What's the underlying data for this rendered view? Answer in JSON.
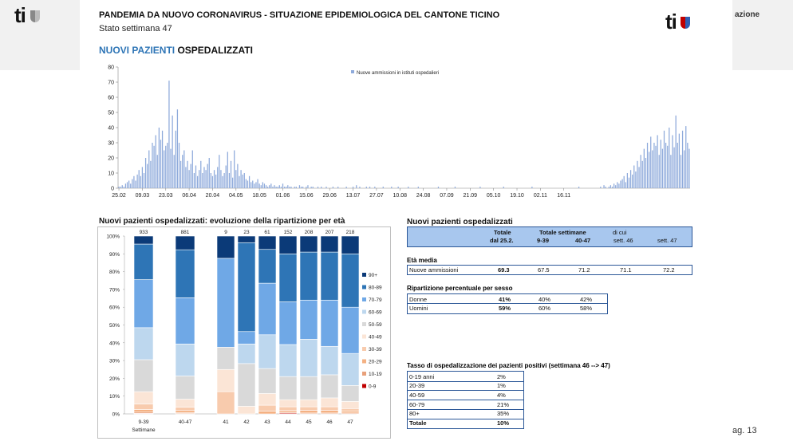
{
  "header": {
    "title": "PANDEMIA DA NUOVO CORONAVIRUS - SITUAZIONE EPIDEMIOLOGICA DEL CANTONE TICINO",
    "subtitle": "Stato settimana 47",
    "logo_text": "ti",
    "right_edge_text": "azione",
    "page_number": "ag. 13"
  },
  "section_title": {
    "part1": "NUOVI PAZIENTI",
    "part2": " OSPEDALIZZATI"
  },
  "chart_data": [
    {
      "type": "bar",
      "legend": "Nuove ammissioni in istituti ospedalieri",
      "legend_position": "top-center",
      "ylim": [
        0,
        80
      ],
      "yticks": [
        0,
        10,
        20,
        30,
        40,
        50,
        60,
        70,
        80
      ],
      "xtick_labels": [
        "25.02",
        "09.03",
        "23.03",
        "06.04",
        "20.04",
        "04.05",
        "18.05",
        "01.06",
        "15.06",
        "29.06",
        "13.07",
        "27.07",
        "10.08",
        "24.08",
        "07.09",
        "21.09",
        "05.10",
        "19.10",
        "02.11",
        "16.11"
      ],
      "start_date": "25.02",
      "color": "#8eaadb",
      "values": [
        1,
        1,
        2,
        1,
        3,
        4,
        5,
        3,
        6,
        8,
        5,
        9,
        12,
        8,
        14,
        10,
        20,
        16,
        25,
        18,
        30,
        28,
        35,
        22,
        40,
        32,
        38,
        25,
        28,
        30,
        71,
        26,
        48,
        22,
        38,
        52,
        30,
        18,
        22,
        25,
        14,
        18,
        12,
        16,
        25,
        10,
        15,
        8,
        12,
        18,
        10,
        14,
        12,
        16,
        20,
        10,
        8,
        12,
        9,
        14,
        22,
        12,
        8,
        10,
        15,
        24,
        10,
        18,
        7,
        25,
        12,
        16,
        8,
        12,
        9,
        10,
        6,
        5,
        8,
        4,
        5,
        3,
        4,
        6,
        3,
        2,
        4,
        3,
        2,
        1,
        2,
        3,
        1,
        2,
        1,
        1,
        2,
        1,
        3,
        1,
        1,
        2,
        1,
        1,
        0,
        1,
        1,
        0,
        2,
        1,
        1,
        0,
        1,
        2,
        0,
        1,
        1,
        0,
        0,
        1,
        0,
        1,
        0,
        0,
        1,
        0,
        0,
        0,
        1,
        0,
        0,
        1,
        0,
        0,
        0,
        0,
        1,
        0,
        0,
        0,
        1,
        0,
        2,
        0,
        1,
        0,
        0,
        0,
        1,
        0,
        1,
        0,
        0,
        1,
        0,
        0,
        0,
        0,
        1,
        0,
        0,
        0,
        0,
        1,
        0,
        0,
        0,
        1,
        0,
        0,
        0,
        0,
        0,
        1,
        0,
        0,
        0,
        0,
        0,
        1,
        0,
        0,
        0,
        0,
        0,
        0,
        0,
        0,
        0,
        0,
        0,
        1,
        0,
        0,
        0,
        0,
        0,
        0,
        0,
        0,
        0,
        1,
        0,
        0,
        0,
        0,
        0,
        0,
        0,
        0,
        0,
        0,
        0,
        0,
        0,
        0,
        1,
        0,
        0,
        0,
        0,
        0,
        0,
        0,
        0,
        0,
        0,
        0,
        0,
        0,
        1,
        0,
        0,
        0,
        0,
        0,
        0,
        0,
        0,
        0,
        0,
        0,
        0,
        0,
        0,
        0,
        0,
        1,
        0,
        0,
        0,
        0,
        0,
        0,
        0,
        0,
        0,
        0,
        0,
        0,
        0,
        0,
        0,
        0,
        0,
        0,
        0,
        0,
        0,
        0,
        0,
        0,
        0,
        0,
        0,
        1,
        0,
        0,
        0,
        0,
        0,
        0,
        0,
        0,
        0,
        0,
        0,
        0,
        1,
        0,
        2,
        1,
        0,
        1,
        2,
        1,
        3,
        2,
        4,
        3,
        5,
        6,
        8,
        4,
        10,
        7,
        12,
        9,
        15,
        11,
        18,
        14,
        22,
        18,
        26,
        20,
        30,
        24,
        34,
        25,
        30,
        28,
        35,
        22,
        32,
        26,
        38,
        30,
        28,
        40,
        22,
        35,
        27,
        48,
        30,
        36,
        22,
        38,
        25,
        41,
        30,
        26
      ]
    },
    {
      "type": "stacked-bar-100",
      "title": "Nuovi pazienti ospedalizzati: evoluzione della ripartizione per età",
      "categories": [
        "9-39",
        "40-47",
        "41",
        "42",
        "43",
        "44",
        "45",
        "46",
        "47"
      ],
      "category_caption": "Settimane",
      "totals": [
        "933",
        "881",
        "9",
        "23",
        "61",
        "152",
        "208",
        "207",
        "218"
      ],
      "yticks": [
        "0%",
        "10%",
        "20%",
        "30%",
        "40%",
        "50%",
        "60%",
        "70%",
        "80%",
        "90%",
        "100%"
      ],
      "legend_position": "right",
      "series": [
        {
          "name": "0-9",
          "color": "#c00000",
          "values": [
            0.3,
            0.2,
            0,
            0,
            0,
            0.5,
            0,
            0,
            0
          ]
        },
        {
          "name": "10-19",
          "color": "#e8a07a",
          "values": [
            0.7,
            0.5,
            0,
            0,
            0,
            0.5,
            0.5,
            0.5,
            0.5
          ]
        },
        {
          "name": "20-29",
          "color": "#f4b183",
          "values": [
            1.5,
            1.2,
            0,
            0,
            1.6,
            1,
            1.5,
            1.5,
            1
          ]
        },
        {
          "name": "30-39",
          "color": "#f8cbad",
          "values": [
            3,
            1.9,
            12.5,
            0,
            3.3,
            2,
            2,
            2,
            1.5
          ]
        },
        {
          "name": "40-49",
          "color": "#fbe5d6",
          "values": [
            7,
            4.5,
            12.5,
            4.3,
            6.6,
            4,
            4,
            5,
            4
          ]
        },
        {
          "name": "50-59",
          "color": "#d9d9d9",
          "values": [
            18,
            13,
            12.5,
            24,
            14,
            13,
            13,
            13,
            9
          ]
        },
        {
          "name": "60-69",
          "color": "#bdd7ee",
          "values": [
            18,
            18,
            0,
            11,
            19,
            18,
            21,
            16,
            18
          ]
        },
        {
          "name": "70-79",
          "color": "#6fa8e6",
          "values": [
            27,
            26,
            50,
            7,
            29,
            24,
            22,
            26,
            26
          ]
        },
        {
          "name": "80-89",
          "color": "#2e75b6",
          "values": [
            20,
            27,
            0,
            50,
            19,
            27,
            27,
            27,
            30
          ]
        },
        {
          "name": "90+",
          "color": "#0b3a78",
          "values": [
            4.5,
            7.7,
            12.5,
            3.7,
            7.5,
            10,
            9,
            9,
            10
          ]
        }
      ]
    }
  ],
  "tables": {
    "main_title": "Nuovi pazienti ospedalizzati",
    "header": {
      "totale": "Totale",
      "dal": "dal 25.2.",
      "totale_settimane": "Totale settimane",
      "r939": "9-39",
      "r4047": "40-47",
      "dicui": "di cui",
      "sett46": "sett. 46",
      "sett47": "sett. 47"
    },
    "eta_media": {
      "title": "Età media",
      "label": "Nuove ammissioni",
      "values": [
        "69.3",
        "67.5",
        "71.2",
        "71.1",
        "72.2"
      ]
    },
    "sesso": {
      "title": "Ripartizione percentuale per sesso",
      "rows": [
        {
          "label": "Donne",
          "values": [
            "41%",
            "40%",
            "42%"
          ]
        },
        {
          "label": "Uomini",
          "values": [
            "59%",
            "60%",
            "58%"
          ]
        }
      ]
    },
    "tasso": {
      "title": "Tasso di ospedalizzazione dei pazienti positivi (settimana 46 --> 47)",
      "rows": [
        {
          "label": "0-19 anni",
          "value": "2%"
        },
        {
          "label": "20-39",
          "value": "1%"
        },
        {
          "label": "40-59",
          "value": "4%"
        },
        {
          "label": "60-79",
          "value": "21%"
        },
        {
          "label": "80+",
          "value": "35%"
        },
        {
          "label": "Totale",
          "value": "10%"
        }
      ]
    }
  }
}
